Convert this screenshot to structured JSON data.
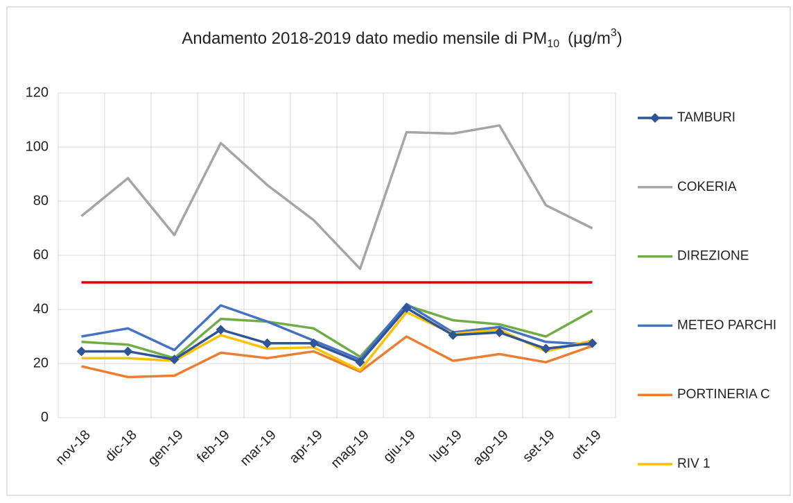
{
  "chart_data": {
    "type": "line",
    "title": {
      "text": "Andamento 2018-2019 dato medio mensile di PM",
      "subscript": "10",
      "unit": "(µg/m",
      "superscript": "3",
      "unit_end": ")"
    },
    "categories": [
      "nov-18",
      "dic-18",
      "gen-19",
      "feb-19",
      "mar-19",
      "apr-19",
      "mag-19",
      "giu-19",
      "lug-19",
      "ago-19",
      "set-19",
      "ott-19"
    ],
    "series": [
      {
        "name": "TAMBURI",
        "color": "#2f5597",
        "marker": "diamond",
        "values": [
          24.5,
          24.5,
          21.5,
          32.5,
          27.5,
          27.5,
          20.5,
          40.5,
          30.5,
          31.5,
          25.5,
          27.5
        ]
      },
      {
        "name": "COKERIA",
        "color": "#a5a5a5",
        "values": [
          74.5,
          88.5,
          67.5,
          101.5,
          86,
          73,
          55,
          105.5,
          105,
          108,
          78.5,
          70
        ]
      },
      {
        "name": "DIREZIONE",
        "color": "#70ad47",
        "values": [
          28,
          27,
          22,
          36.5,
          35.5,
          33,
          22.5,
          41.5,
          36,
          34.5,
          30,
          39.5
        ]
      },
      {
        "name": "METEO PARCHI",
        "color": "#4472c4",
        "values": [
          30,
          33,
          25,
          41.5,
          35.5,
          28.5,
          21.5,
          42,
          31.5,
          33.5,
          28,
          27
        ]
      },
      {
        "name": "PORTINERIA C",
        "color": "#ed7d31",
        "values": [
          19,
          15,
          15.5,
          24,
          22,
          24.5,
          17,
          30,
          21,
          23.5,
          20.5,
          26.5
        ]
      },
      {
        "name": "RIV 1",
        "color": "#ffc000",
        "values": [
          22,
          22,
          21,
          30.5,
          25.5,
          26,
          17.5,
          39,
          31,
          32.5,
          24.5,
          28.5
        ]
      }
    ],
    "reference_line": {
      "value": 50,
      "color": "#e00000"
    },
    "ylim": [
      0,
      120
    ],
    "yticks": [
      0,
      20,
      40,
      60,
      80,
      100,
      120
    ],
    "grid": true,
    "legend": "right"
  }
}
